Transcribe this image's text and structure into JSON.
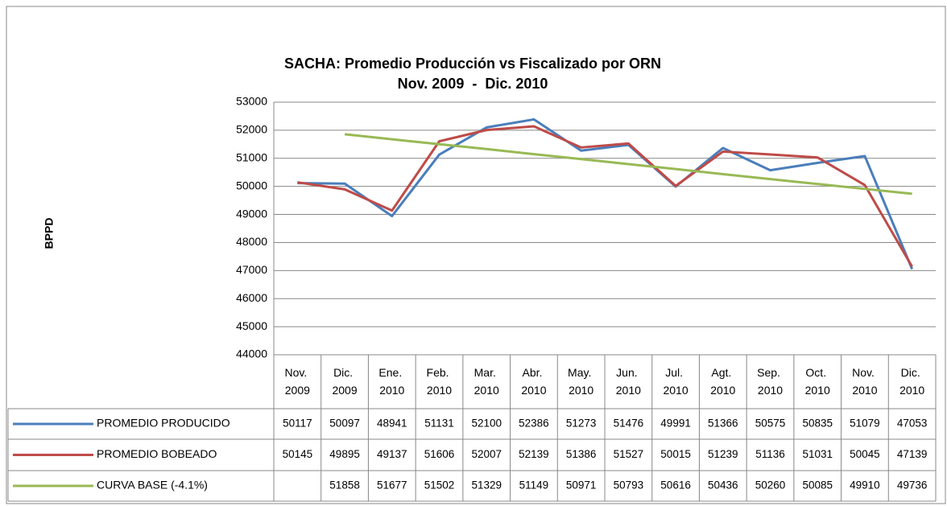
{
  "chart_data": {
    "type": "line",
    "title": "SACHA: Promedio Producción vs Fiscalizado por ORN",
    "subtitle": "Nov. 2009  -  Dic. 2010",
    "y_label": "BPPD",
    "categories": [
      "Nov. 2009",
      "Dic. 2009",
      "Ene. 2010",
      "Feb. 2010",
      "Mar. 2010",
      "Abr. 2010",
      "May. 2010",
      "Jun. 2010",
      "Jul. 2010",
      "Agt. 2010",
      "Sep. 2010",
      "Oct. 2010",
      "Nov. 2010",
      "Dic. 2010"
    ],
    "series": [
      {
        "name": "PROMEDIO PRODUCIDO",
        "color": "#4a7ebb",
        "values": [
          50117,
          50097,
          48941,
          51131,
          52100,
          52386,
          51273,
          51476,
          49991,
          51366,
          50575,
          50835,
          51079,
          47053
        ]
      },
      {
        "name": "PROMEDIO BOBEADO",
        "color": "#be4b48",
        "values": [
          50145,
          49895,
          49137,
          51606,
          52007,
          52139,
          51386,
          51527,
          50015,
          51239,
          51136,
          51031,
          50045,
          47139
        ]
      },
      {
        "name": "CURVA BASE (-4.1%)",
        "color": "#98b954",
        "values": [
          null,
          51858,
          51677,
          51502,
          51329,
          51149,
          50971,
          50793,
          50616,
          50436,
          50260,
          50085,
          49910,
          49736
        ]
      }
    ],
    "ylim": [
      44000,
      53000
    ],
    "yticks": [
      44000,
      45000,
      46000,
      47000,
      48000,
      49000,
      50000,
      51000,
      52000,
      53000
    ],
    "grid": true,
    "data_table": true
  }
}
